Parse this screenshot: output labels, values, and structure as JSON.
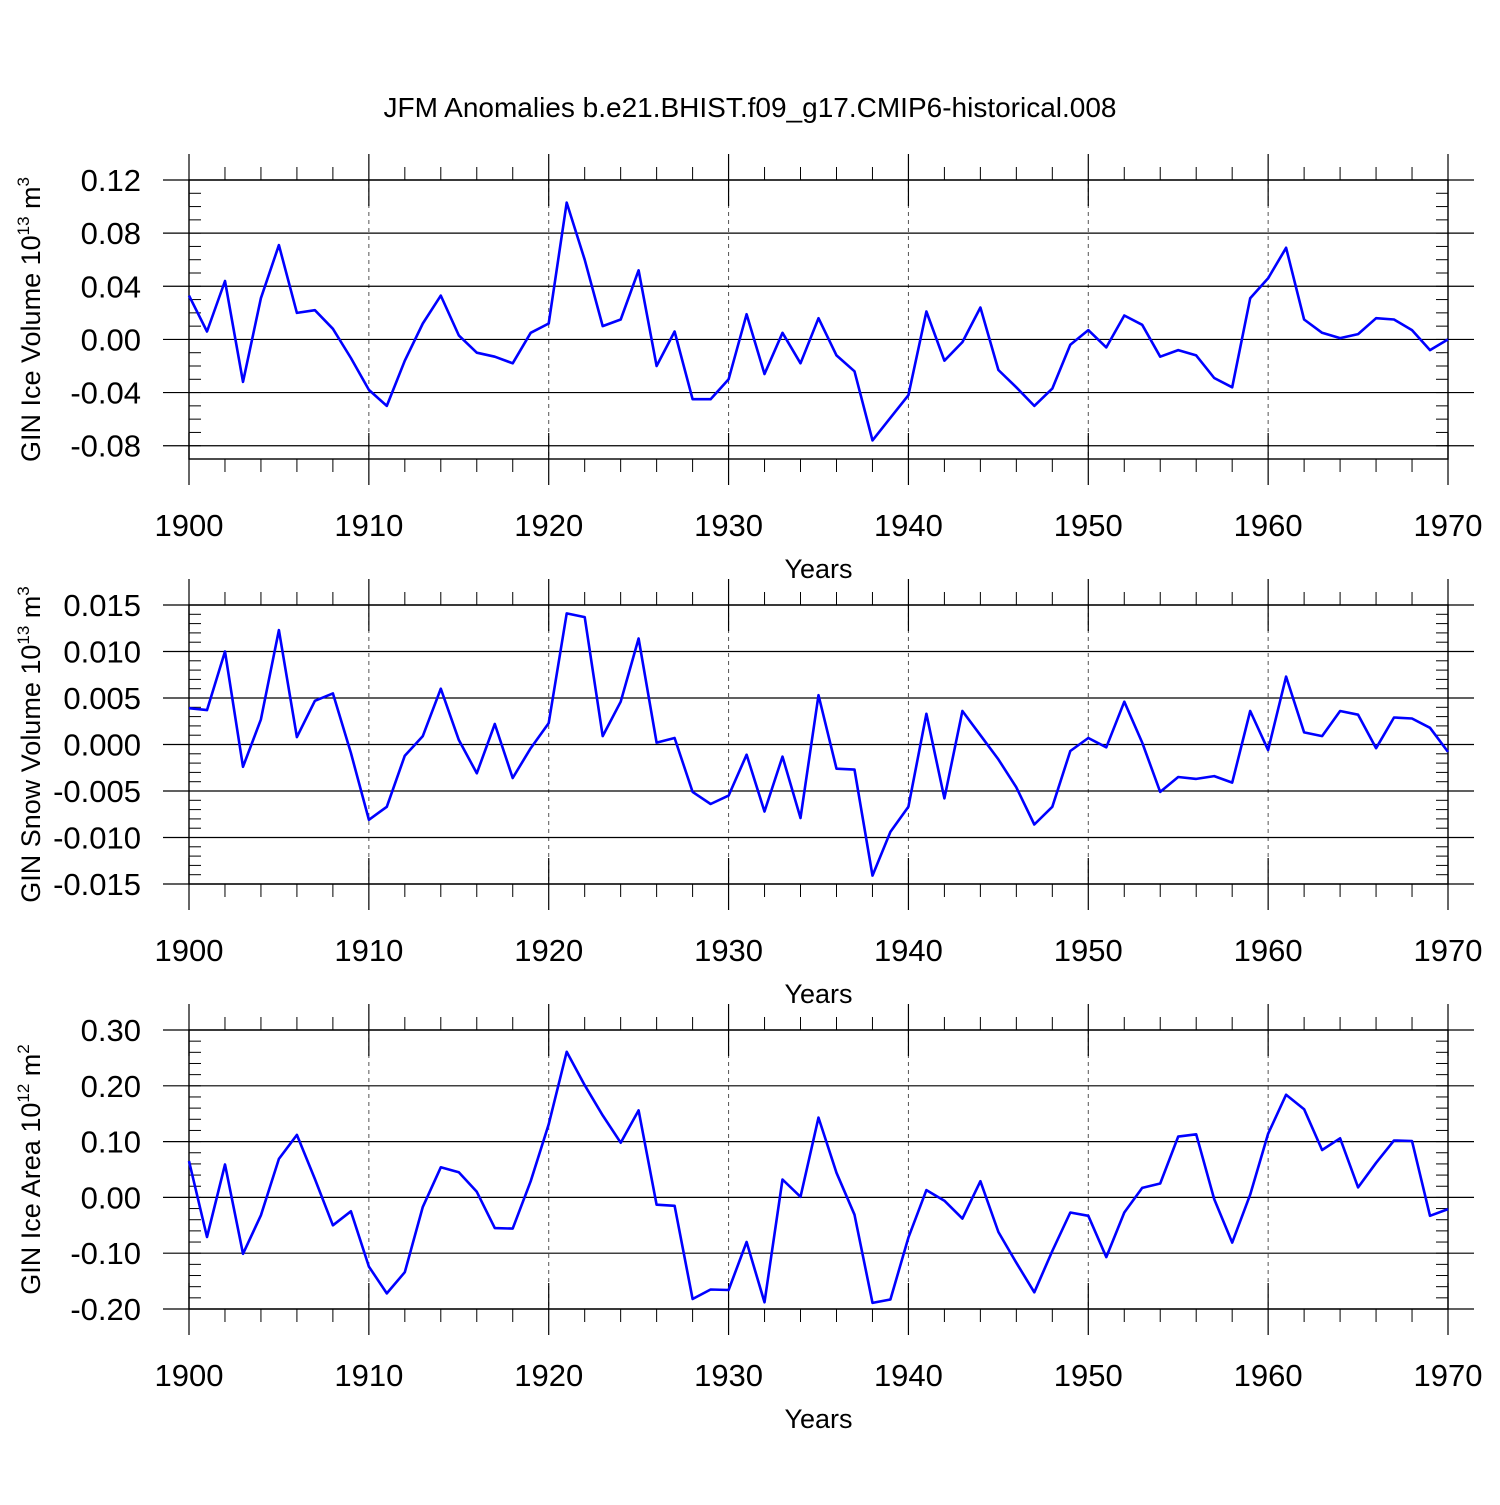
{
  "figure_title": "JFM Anomalies b.e21.BHIST.f09_g17.CMIP6-historical.008",
  "colors": {
    "line": "#0000ff",
    "axis": "#000000",
    "grid": "#555555"
  },
  "chart_data": [
    {
      "type": "line",
      "title": "JFM Anomalies b.e21.BHIST.f09_g17.CMIP6-historical.008",
      "xlabel": "Years",
      "ylabel": "GIN Ice Volume 10",
      "ylabel_exp": "13",
      "ylabel_unit": " m",
      "ylabel_unit_exp": "3",
      "xlim": [
        1900,
        1970
      ],
      "ylim": [
        -0.09,
        0.12
      ],
      "yticks": [
        -0.08,
        -0.04,
        0.0,
        0.04,
        0.08,
        0.12
      ],
      "ytick_labels": [
        "-0.08",
        "-0.04",
        "0.00",
        "0.04",
        "0.08",
        "0.12"
      ],
      "yminor": 0.01,
      "xticks": [
        1900,
        1910,
        1920,
        1930,
        1940,
        1950,
        1960,
        1970
      ],
      "xtick_labels": [
        "1900",
        "1910",
        "1920",
        "1930",
        "1940",
        "1950",
        "1960",
        "1970"
      ],
      "grid_x": [
        1910,
        1920,
        1930,
        1940,
        1950,
        1960
      ],
      "series": [
        {
          "name": "GIN Ice Volume",
          "x": [
            1900,
            1901,
            1902,
            1903,
            1904,
            1905,
            1906,
            1907,
            1908,
            1909,
            1910,
            1911,
            1912,
            1913,
            1914,
            1915,
            1916,
            1917,
            1918,
            1919,
            1920,
            1921,
            1922,
            1923,
            1924,
            1925,
            1926,
            1927,
            1928,
            1929,
            1930,
            1931,
            1932,
            1933,
            1934,
            1935,
            1936,
            1937,
            1938,
            1939,
            1940,
            1941,
            1942,
            1943,
            1944,
            1945,
            1946,
            1947,
            1948,
            1949,
            1950,
            1951,
            1952,
            1953,
            1954,
            1955,
            1956,
            1957,
            1958,
            1959,
            1960,
            1961,
            1962,
            1963,
            1964,
            1965,
            1966,
            1967,
            1968,
            1969,
            1970
          ],
          "values": [
            0.033,
            0.006,
            0.044,
            -0.032,
            0.031,
            0.071,
            0.02,
            0.022,
            0.008,
            -0.014,
            -0.038,
            -0.05,
            -0.016,
            0.012,
            0.033,
            0.003,
            -0.01,
            -0.013,
            -0.018,
            0.005,
            0.012,
            0.103,
            0.06,
            0.01,
            0.015,
            0.052,
            -0.02,
            0.006,
            -0.045,
            -0.045,
            -0.03,
            0.019,
            -0.026,
            0.005,
            -0.018,
            0.016,
            -0.012,
            -0.024,
            -0.076,
            -0.059,
            -0.042,
            0.021,
            -0.016,
            -0.002,
            0.024,
            -0.023,
            -0.036,
            -0.05,
            -0.037,
            -0.004,
            0.007,
            -0.006,
            0.018,
            0.011,
            -0.013,
            -0.008,
            -0.012,
            -0.029,
            -0.036,
            0.031,
            0.046,
            0.069,
            0.015,
            0.005,
            0.001,
            0.004,
            0.016,
            0.015,
            0.007,
            -0.008,
            0.0
          ]
        }
      ]
    },
    {
      "type": "line",
      "xlabel": "Years",
      "ylabel": "GIN Snow Volume 10",
      "ylabel_exp": "13",
      "ylabel_unit": " m",
      "ylabel_unit_exp": "3",
      "xlim": [
        1900,
        1970
      ],
      "ylim": [
        -0.015,
        0.015
      ],
      "yticks": [
        -0.015,
        -0.01,
        -0.005,
        0.0,
        0.005,
        0.01,
        0.015
      ],
      "ytick_labels": [
        "-0.015",
        "-0.010",
        "-0.005",
        "0.000",
        "0.005",
        "0.010",
        "0.015"
      ],
      "yminor": 0.001,
      "xticks": [
        1900,
        1910,
        1920,
        1930,
        1940,
        1950,
        1960,
        1970
      ],
      "xtick_labels": [
        "1900",
        "1910",
        "1920",
        "1930",
        "1940",
        "1950",
        "1960",
        "1970"
      ],
      "grid_x": [
        1910,
        1920,
        1930,
        1940,
        1950,
        1960
      ],
      "series": [
        {
          "name": "GIN Snow Volume",
          "x": [
            1900,
            1901,
            1902,
            1903,
            1904,
            1905,
            1906,
            1907,
            1908,
            1909,
            1910,
            1911,
            1912,
            1913,
            1914,
            1915,
            1916,
            1917,
            1918,
            1919,
            1920,
            1921,
            1922,
            1923,
            1924,
            1925,
            1926,
            1927,
            1928,
            1929,
            1930,
            1931,
            1932,
            1933,
            1934,
            1935,
            1936,
            1937,
            1938,
            1939,
            1940,
            1941,
            1942,
            1943,
            1944,
            1945,
            1946,
            1947,
            1948,
            1949,
            1950,
            1951,
            1952,
            1953,
            1954,
            1955,
            1956,
            1957,
            1958,
            1959,
            1960,
            1961,
            1962,
            1963,
            1964,
            1965,
            1966,
            1967,
            1968,
            1969,
            1970
          ],
          "values": [
            0.0039,
            0.0037,
            0.01,
            -0.0024,
            0.0027,
            0.0123,
            0.0008,
            0.0047,
            0.0055,
            -0.0009,
            -0.0081,
            -0.0067,
            -0.0012,
            0.0009,
            0.006,
            0.0005,
            -0.0031,
            0.0022,
            -0.0036,
            -0.0004,
            0.0023,
            0.0141,
            0.0137,
            0.0009,
            0.0046,
            0.0114,
            0.0002,
            0.0007,
            -0.0051,
            -0.0064,
            -0.0055,
            -0.0011,
            -0.0072,
            -0.0013,
            -0.0079,
            0.0053,
            -0.0026,
            -0.0027,
            -0.0141,
            -0.0094,
            -0.0067,
            0.0033,
            -0.0058,
            0.0036,
            0.001,
            -0.0016,
            -0.0046,
            -0.0086,
            -0.0067,
            -0.0007,
            0.0007,
            -0.0003,
            0.0046,
            0.0002,
            -0.0051,
            -0.0035,
            -0.0037,
            -0.0034,
            -0.0041,
            0.0036,
            -0.0006,
            0.0073,
            0.0013,
            0.0009,
            0.0036,
            0.0032,
            -0.0004,
            0.0029,
            0.0028,
            0.0018,
            -0.0008
          ]
        }
      ]
    },
    {
      "type": "line",
      "xlabel": "Years",
      "ylabel": "GIN Ice Area 10",
      "ylabel_exp": "12",
      "ylabel_unit": " m",
      "ylabel_unit_exp": "2",
      "xlim": [
        1900,
        1970
      ],
      "ylim": [
        -0.2,
        0.3
      ],
      "yticks": [
        -0.2,
        -0.1,
        0.0,
        0.1,
        0.2,
        0.3
      ],
      "ytick_labels": [
        "-0.20",
        "-0.10",
        "0.00",
        "0.10",
        "0.20",
        "0.30"
      ],
      "yminor": 0.02,
      "xticks": [
        1900,
        1910,
        1920,
        1930,
        1940,
        1950,
        1960,
        1970
      ],
      "xtick_labels": [
        "1900",
        "1910",
        "1920",
        "1930",
        "1940",
        "1950",
        "1960",
        "1970"
      ],
      "grid_x": [
        1910,
        1920,
        1930,
        1940,
        1950,
        1960
      ],
      "series": [
        {
          "name": "GIN Ice Area",
          "x": [
            1900,
            1901,
            1902,
            1903,
            1904,
            1905,
            1906,
            1907,
            1908,
            1909,
            1910,
            1911,
            1912,
            1913,
            1914,
            1915,
            1916,
            1917,
            1918,
            1919,
            1920,
            1921,
            1922,
            1923,
            1924,
            1925,
            1926,
            1927,
            1928,
            1929,
            1930,
            1931,
            1932,
            1933,
            1934,
            1935,
            1936,
            1937,
            1938,
            1939,
            1940,
            1941,
            1942,
            1943,
            1944,
            1945,
            1946,
            1947,
            1948,
            1949,
            1950,
            1951,
            1952,
            1953,
            1954,
            1955,
            1956,
            1957,
            1958,
            1959,
            1960,
            1961,
            1962,
            1963,
            1964,
            1965,
            1966,
            1967,
            1968,
            1969,
            1970
          ],
          "values": [
            0.065,
            -0.071,
            0.059,
            -0.101,
            -0.032,
            0.069,
            0.112,
            0.033,
            -0.05,
            -0.025,
            -0.124,
            -0.172,
            -0.134,
            -0.017,
            0.054,
            0.045,
            0.01,
            -0.055,
            -0.056,
            0.029,
            0.131,
            0.261,
            0.201,
            0.147,
            0.098,
            0.156,
            -0.013,
            -0.015,
            -0.182,
            -0.165,
            -0.166,
            -0.08,
            -0.188,
            0.032,
            0.001,
            0.143,
            0.044,
            -0.031,
            -0.189,
            -0.183,
            -0.072,
            0.013,
            -0.006,
            -0.038,
            0.029,
            -0.062,
            -0.117,
            -0.17,
            -0.096,
            -0.027,
            -0.033,
            -0.107,
            -0.027,
            0.017,
            0.025,
            0.109,
            0.113,
            -0.003,
            -0.081,
            0.005,
            0.114,
            0.184,
            0.158,
            0.085,
            0.106,
            0.018,
            0.062,
            0.102,
            0.101,
            -0.033,
            -0.021
          ]
        }
      ]
    }
  ]
}
